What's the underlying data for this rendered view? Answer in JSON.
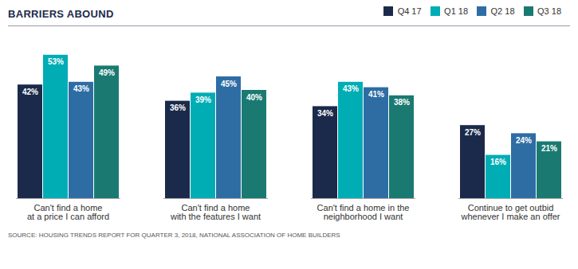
{
  "chart_data": {
    "type": "bar",
    "title": "BARRIERS ABOUND",
    "source": "SOURCE: HOUSING TRENDS REPORT FOR QUARTER 3, 2018, NATIONAL ASSOCIATION OF HOME BUILDERS",
    "categories": [
      "Can't find a home\nat a price I can afford",
      "Can't find a home\nwith the features I want",
      "Can't find a home in the\nneighborhood I want",
      "Continue to get outbid\nwhenever I make an offer"
    ],
    "series": [
      {
        "name": "Q4 17",
        "color": "#1b2a4a",
        "values": [
          42,
          36,
          34,
          27
        ],
        "value_labels": [
          "42%",
          "36%",
          "34%",
          "27%"
        ]
      },
      {
        "name": "Q1 18",
        "color": "#00adb5",
        "values": [
          53,
          39,
          43,
          16
        ],
        "value_labels": [
          "53%",
          "39%",
          "43%",
          "16%"
        ]
      },
      {
        "name": "Q2 18",
        "color": "#2e6da4",
        "values": [
          43,
          45,
          41,
          24
        ],
        "value_labels": [
          "43%",
          "45%",
          "41%",
          "24%"
        ]
      },
      {
        "name": "Q3 18",
        "color": "#1a7a72",
        "values": [
          49,
          40,
          38,
          21
        ],
        "value_labels": [
          "49%",
          "40%",
          "38%",
          "21%"
        ]
      }
    ],
    "ylim": [
      0,
      60
    ],
    "grid": false,
    "legend": "upper right",
    "data_labels": true,
    "tick_labels": "x"
  }
}
